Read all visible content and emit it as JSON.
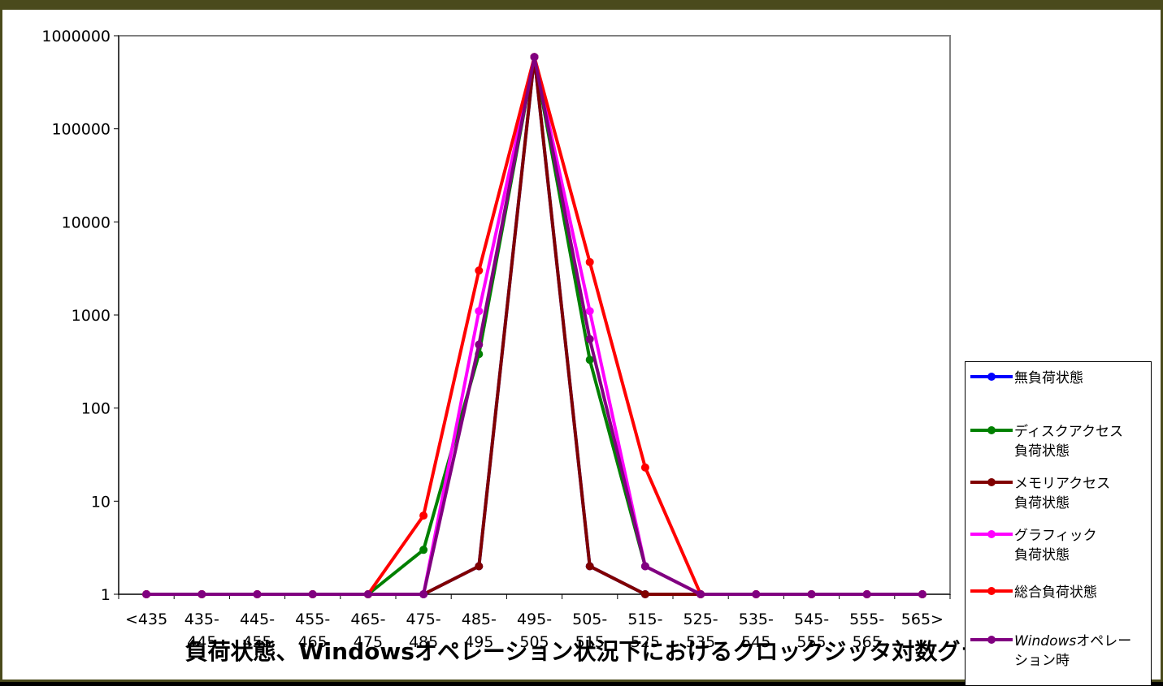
{
  "chart_data": {
    "type": "line",
    "title": "負荷状態、Windowsオペレーション状況下におけるクロックジッタ対数グラフ",
    "y_scale": "log",
    "ylim": [
      1,
      1000000
    ],
    "y_ticks": [
      "1",
      "10",
      "100",
      "1000",
      "10000",
      "100000",
      "1000000"
    ],
    "categories": [
      "<435",
      "435-445",
      "445-455",
      "455-465",
      "465-475",
      "475-485",
      "485-495",
      "495-505",
      "505-515",
      "515-525",
      "525-535",
      "535-545",
      "545-555",
      "555-565",
      "565>"
    ],
    "category_labels": [
      [
        "<435",
        ""
      ],
      [
        "435-",
        "445"
      ],
      [
        "445-",
        "455"
      ],
      [
        "455-",
        "465"
      ],
      [
        "465-",
        "475"
      ],
      [
        "475-",
        "485"
      ],
      [
        "485-",
        "495"
      ],
      [
        "495-",
        "505"
      ],
      [
        "505-",
        "515"
      ],
      [
        "515-",
        "525"
      ],
      [
        "525-",
        "535"
      ],
      [
        "535-",
        "545"
      ],
      [
        "545-",
        "555"
      ],
      [
        "555-",
        "565"
      ],
      [
        "565>",
        ""
      ]
    ],
    "grid": false,
    "legend_position": "right",
    "series": [
      {
        "name_lines": [
          "無負荷状態"
        ],
        "color": "#0000ff",
        "values": [
          1,
          1,
          1,
          1,
          1,
          1,
          2,
          590000,
          2,
          1,
          1,
          1,
          1,
          1,
          1
        ]
      },
      {
        "name_lines": [
          "ディスクアクセス",
          "負荷状態"
        ],
        "color": "#008000",
        "values": [
          1,
          1,
          1,
          1,
          1,
          3,
          380,
          590000,
          330,
          2,
          1,
          1,
          1,
          1,
          1
        ]
      },
      {
        "name_lines": [
          "メモリアクセス",
          "負荷状態"
        ],
        "color": "#800000",
        "values": [
          1,
          1,
          1,
          1,
          1,
          1,
          2,
          590000,
          2,
          1,
          1,
          1,
          1,
          1,
          1
        ]
      },
      {
        "name_lines": [
          "グラフィック",
          "負荷状態"
        ],
        "color": "#ff00ff",
        "values": [
          1,
          1,
          1,
          1,
          1,
          1,
          1100,
          590000,
          1100,
          2,
          1,
          1,
          1,
          1,
          1
        ]
      },
      {
        "name_lines": [
          "総合負荷状態"
        ],
        "color": "#ff0000",
        "values": [
          1,
          1,
          1,
          1,
          1,
          7,
          3000,
          590000,
          3700,
          23,
          1,
          1,
          1,
          1,
          1
        ]
      },
      {
        "name_parts": [
          {
            "text": "Windows",
            "italic": true
          },
          {
            "text": "オペレー",
            "italic": false
          }
        ],
        "name_line2": "ション時",
        "color": "#800080",
        "values": [
          1,
          1,
          1,
          1,
          1,
          1,
          480,
          590000,
          550,
          2,
          1,
          1,
          1,
          1,
          1
        ]
      }
    ]
  }
}
